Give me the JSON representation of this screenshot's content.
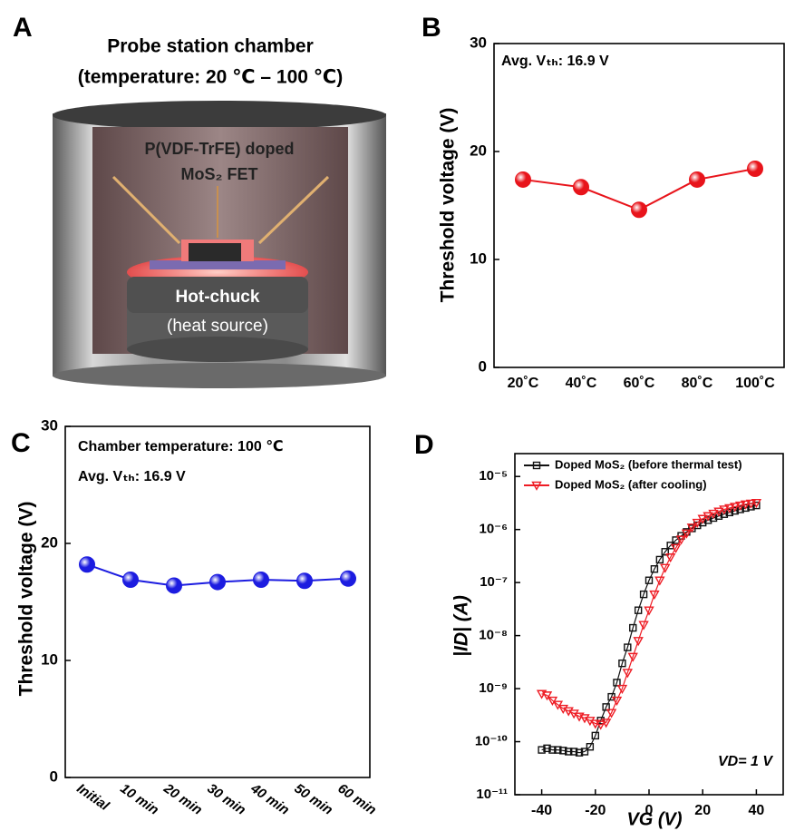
{
  "panel_a": {
    "label": "A",
    "title_line1": "Probe station chamber",
    "title_line2": "(temperature: 20 ℃ – 100 ℃)",
    "device_line1": "P(VDF-TrFE) doped",
    "device_line2": "MoS₂ FET",
    "chuck_line1": "Hot-chuck",
    "chuck_line2": "(heat source)"
  },
  "chart_data": [
    {
      "type": "line",
      "panel_label": "B",
      "ylabel": "Threshold voltage (V)",
      "annotations": [
        "Avg. Vₜₕ: 16.9 V"
      ],
      "categories": [
        "20˚C",
        "40˚C",
        "60˚C",
        "80˚C",
        "100˚C"
      ],
      "values": [
        17.4,
        16.7,
        14.6,
        17.4,
        18.4
      ],
      "color": "#e8141b",
      "marker": "circle",
      "ylim": [
        0,
        30
      ],
      "yticks": [
        0,
        10,
        20,
        30
      ]
    },
    {
      "type": "line",
      "panel_label": "C",
      "ylabel": "Threshold voltage (V)",
      "annotations": [
        "Chamber temperature: 100 ℃",
        "Avg. Vₜₕ: 16.9 V"
      ],
      "categories": [
        "Initial",
        "10 min",
        "20 min",
        "30 min",
        "40 min",
        "50 min",
        "60 min"
      ],
      "values": [
        18.2,
        16.9,
        16.4,
        16.7,
        16.9,
        16.8,
        17.0
      ],
      "color": "#1c1ce0",
      "marker": "circle",
      "ylim": [
        0,
        30
      ],
      "yticks": [
        0,
        10,
        20,
        30
      ]
    },
    {
      "type": "line",
      "panel_label": "D",
      "xlabel": "VG (V)",
      "ylabel": "|ID| (A)",
      "annotations": [
        "VD= 1 V"
      ],
      "log_y": true,
      "x": [
        -40,
        -38,
        -36,
        -34,
        -32,
        -30,
        -28,
        -26,
        -24,
        -22,
        -20,
        -18,
        -16,
        -14,
        -12,
        -10,
        -8,
        -6,
        -4,
        -2,
        0,
        2,
        4,
        6,
        8,
        10,
        12,
        14,
        16,
        18,
        20,
        22,
        24,
        26,
        28,
        30,
        32,
        34,
        36,
        38,
        40
      ],
      "series": [
        {
          "name": "Doped MoS₂ (before thermal test)",
          "color": "#111111",
          "marker": "square",
          "values": [
            7e-11,
            7.5e-11,
            7e-11,
            7e-11,
            6.8e-11,
            6.5e-11,
            6.5e-11,
            6.2e-11,
            6.5e-11,
            8e-11,
            1.3e-10,
            2.5e-10,
            4.5e-10,
            7e-10,
            1.3e-09,
            3e-09,
            6e-09,
            1.4e-08,
            3e-08,
            6e-08,
            1.1e-07,
            1.8e-07,
            2.7e-07,
            3.8e-07,
            5e-07,
            6.3e-07,
            7.6e-07,
            9e-07,
            1.05e-06,
            1.2e-06,
            1.35e-06,
            1.5e-06,
            1.65e-06,
            1.8e-06,
            1.95e-06,
            2.1e-06,
            2.25e-06,
            2.4e-06,
            2.55e-06,
            2.7e-06,
            2.85e-06
          ]
        },
        {
          "name": "Doped MoS₂ (after cooling)",
          "color": "#ee1c24",
          "marker": "triangle",
          "values": [
            8e-10,
            7.5e-10,
            6e-10,
            5e-10,
            4.2e-10,
            3.8e-10,
            3.4e-10,
            3e-10,
            2.8e-10,
            2.5e-10,
            2.2e-10,
            2.1e-10,
            2.3e-10,
            3.5e-10,
            6e-10,
            1e-09,
            2e-09,
            4e-09,
            8e-09,
            1.6e-08,
            3e-08,
            6e-08,
            1.1e-07,
            1.9e-07,
            3e-07,
            4.5e-07,
            6.5e-07,
            8.5e-07,
            1.1e-06,
            1.35e-06,
            1.6e-06,
            1.8e-06,
            2e-06,
            2.2e-06,
            2.4e-06,
            2.55e-06,
            2.7e-06,
            2.85e-06,
            3e-06,
            3.1e-06,
            3.2e-06
          ]
        }
      ],
      "xlim": [
        -50,
        50
      ],
      "xticks": [
        -40,
        -20,
        0,
        20,
        40
      ],
      "ylim": [
        1e-11,
        2.7e-05
      ],
      "yticks": [
        {
          "value": 1e-11,
          "label": "10⁻¹¹"
        },
        {
          "value": 1e-10,
          "label": "10⁻¹⁰"
        },
        {
          "value": 1e-09,
          "label": "10⁻⁹"
        },
        {
          "value": 1e-08,
          "label": "10⁻⁸"
        },
        {
          "value": 1e-07,
          "label": "10⁻⁷"
        },
        {
          "value": 1e-06,
          "label": "10⁻⁶"
        },
        {
          "value": 1e-05,
          "label": "10⁻⁵"
        }
      ]
    }
  ]
}
